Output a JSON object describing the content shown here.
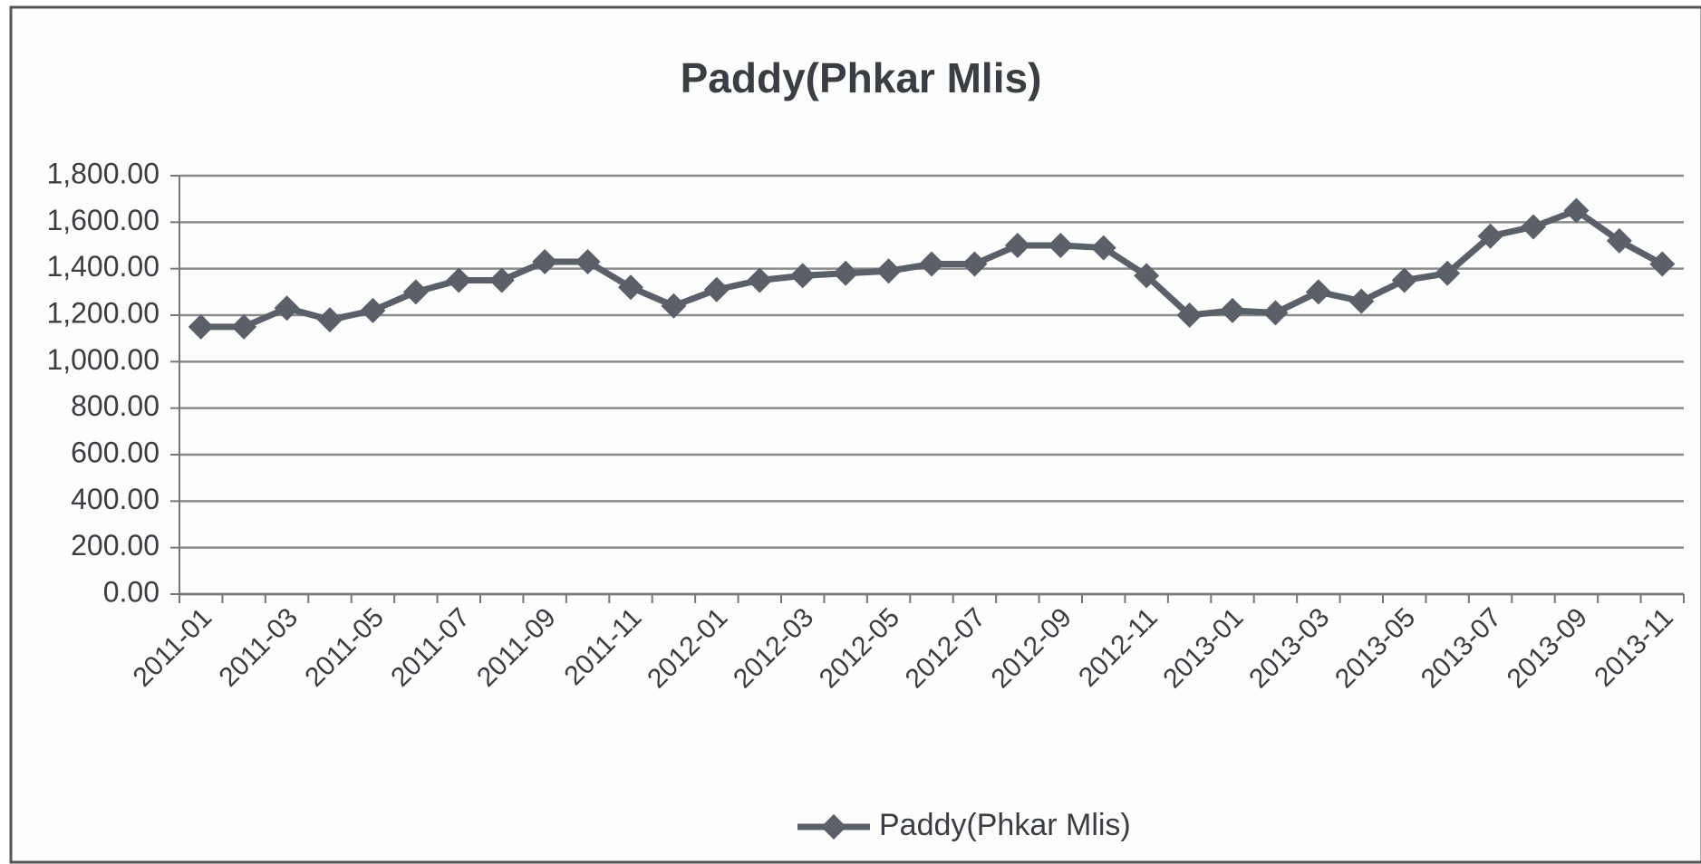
{
  "chart_data": {
    "type": "line",
    "title": "Paddy(Phkar Mlis)",
    "categories": [
      "2011-01",
      null,
      "2011-03",
      null,
      "2011-05",
      null,
      "2011-07",
      null,
      "2011-09",
      null,
      "2011-11",
      null,
      "2012-01",
      null,
      "2012-03",
      null,
      "2012-05",
      null,
      "2012-07",
      null,
      "2012-09",
      null,
      "2012-11",
      null,
      "2013-01",
      null,
      "2013-03",
      null,
      "2013-05",
      null,
      "2013-07",
      null,
      "2013-09",
      null,
      "2013-11"
    ],
    "series": [
      {
        "name": "Paddy(Phkar Mlis)",
        "color": "#5b6068",
        "values": [
          1150,
          1150,
          1230,
          1180,
          1220,
          1300,
          1350,
          1350,
          1430,
          1430,
          1320,
          1240,
          1310,
          1350,
          1370,
          1380,
          1390,
          1420,
          1420,
          1500,
          1500,
          1490,
          1370,
          1200,
          1220,
          1210,
          1300,
          1260,
          1350,
          1380,
          1540,
          1580,
          1650,
          1520,
          1420
        ]
      }
    ],
    "ylim": [
      0,
      1800
    ],
    "yticks": [
      {
        "value": 0,
        "label": "0.00"
      },
      {
        "value": 200,
        "label": "200.00"
      },
      {
        "value": 400,
        "label": "400.00"
      },
      {
        "value": 600,
        "label": "600.00"
      },
      {
        "value": 800,
        "label": "800.00"
      },
      {
        "value": 1000,
        "label": "1,000.00"
      },
      {
        "value": 1200,
        "label": "1,200.00"
      },
      {
        "value": 1400,
        "label": "1,400.00"
      },
      {
        "value": 1600,
        "label": "1,600.00"
      },
      {
        "value": 1800,
        "label": "1,800.00"
      }
    ],
    "grid": true,
    "legend": "bottom"
  }
}
